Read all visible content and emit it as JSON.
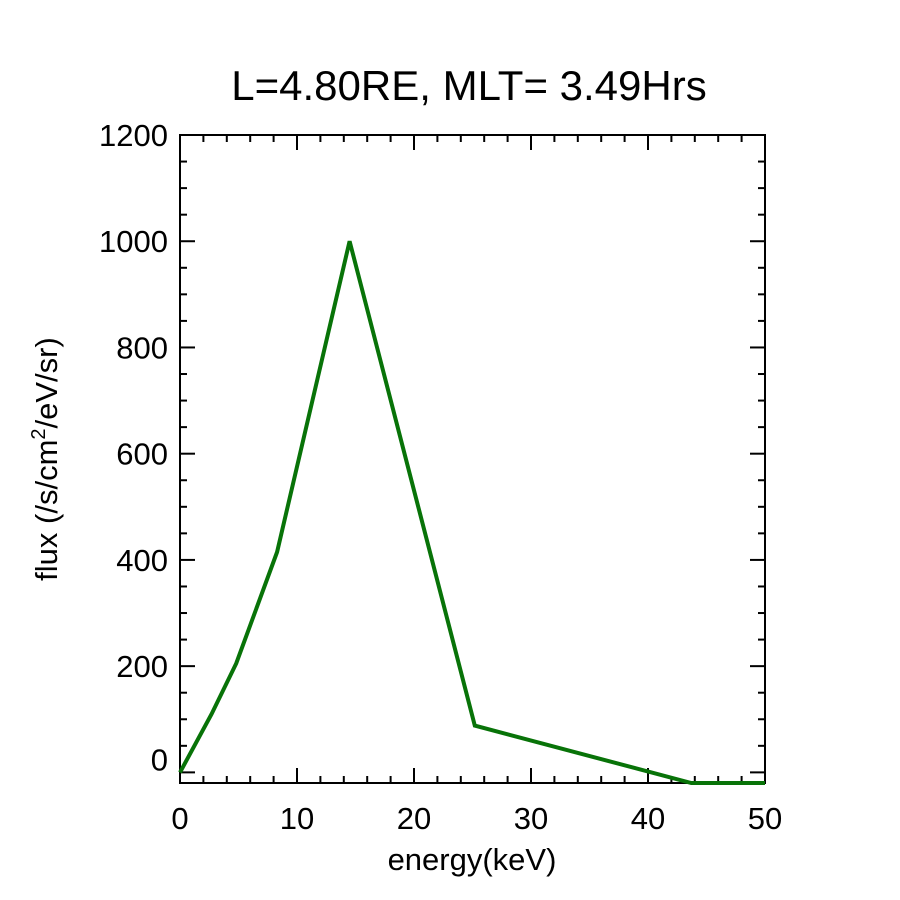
{
  "chart_data": {
    "type": "line",
    "title": "L=4.80RE, MLT= 3.49Hrs",
    "xlabel": "energy(keV)",
    "ylabel_parts": [
      "flux (/s/cm",
      "2",
      "/eV/sr)"
    ],
    "xlim": [
      0,
      50
    ],
    "ylim": [
      -20,
      1200
    ],
    "xticks": [
      0,
      10,
      20,
      30,
      40,
      50
    ],
    "yticks": [
      0,
      200,
      400,
      600,
      800,
      1000,
      1200
    ],
    "xticks_labels": [
      "0",
      "10",
      "20",
      "30",
      "40",
      "50"
    ],
    "yticks_labels": [
      "0",
      "200",
      "400",
      "600",
      "800",
      "1000",
      "1200"
    ],
    "grid": false,
    "series": [
      {
        "color": "#087308",
        "x": [
          0,
          2.7,
          4.8,
          8.3,
          14.5,
          25.2,
          43.7,
          50
        ],
        "y": [
          0,
          110,
          205,
          415,
          1000,
          88,
          -20,
          -20
        ]
      }
    ]
  }
}
